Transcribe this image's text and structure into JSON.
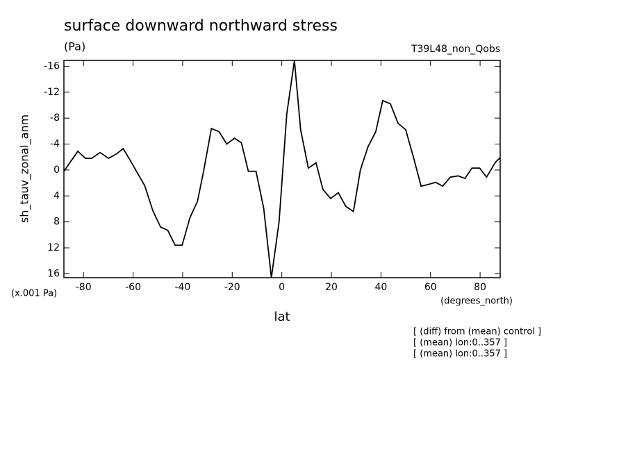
{
  "chart_data": {
    "type": "line",
    "title": "surface downward northward stress",
    "units": "(Pa)",
    "dataset": "T39L48_non_Qobs",
    "ylabel": "sh_tauv_zonal_anm",
    "yscale_note": "(x.001 Pa)",
    "xunits": "(degrees_north)",
    "xlabel": "lat",
    "notes": [
      "[ (diff) from (mean) control ]",
      "[ (mean) lon:0..357 ]",
      "[ (mean) lon:0..357 ]"
    ],
    "xlim": [
      -87.9,
      88.1
    ],
    "ylim": [
      16.6,
      -16.9
    ],
    "xticks": [
      -80,
      -60,
      -40,
      -20,
      0,
      20,
      40,
      60,
      80
    ],
    "yticks": [
      -16,
      -12,
      -8,
      -4,
      0,
      4,
      8,
      12,
      16
    ],
    "series": [
      {
        "name": "sh_tauv_zonal_anm",
        "color": "#000000",
        "x": [
          -87.9,
          -82.3,
          -79.2,
          -76.7,
          -73.3,
          -69.9,
          -66.6,
          -64.0,
          -61.0,
          -57.9,
          -55.3,
          -52.0,
          -48.9,
          -46.0,
          -43.0,
          -40.2,
          -37.1,
          -34.0,
          -31.5,
          -28.4,
          -25.3,
          -22.2,
          -19.1,
          -16.3,
          -13.5,
          -10.4,
          -7.3,
          -4.2,
          -1.1,
          2.0,
          5.1,
          7.6,
          10.7,
          13.8,
          16.6,
          19.7,
          22.8,
          25.8,
          28.9,
          31.7,
          34.8,
          37.9,
          40.7,
          43.8,
          46.9,
          50.0,
          53.1,
          56.2,
          59.3,
          62.1,
          64.9,
          68.0,
          71.1,
          73.9,
          76.7,
          79.8,
          82.6,
          86.2,
          88.1
        ],
        "values": [
          0.2,
          -2.9,
          -1.8,
          -1.8,
          -2.7,
          -1.8,
          -2.5,
          -3.3,
          -1.4,
          0.7,
          2.4,
          6.3,
          8.8,
          9.3,
          11.6,
          11.6,
          7.4,
          4.8,
          0.1,
          -6.4,
          -5.9,
          -4.0,
          -4.9,
          -4.2,
          0.2,
          0.2,
          5.9,
          16.6,
          8.0,
          -8.6,
          -16.9,
          -6.2,
          -0.3,
          -1.1,
          3.0,
          4.4,
          3.5,
          5.6,
          6.4,
          0.0,
          -3.6,
          -5.9,
          -10.7,
          -10.2,
          -7.2,
          -6.2,
          -2.0,
          2.5,
          2.2,
          1.9,
          2.5,
          1.1,
          0.9,
          1.3,
          -0.3,
          -0.3,
          1.1,
          -1.2,
          -1.9
        ]
      }
    ]
  }
}
